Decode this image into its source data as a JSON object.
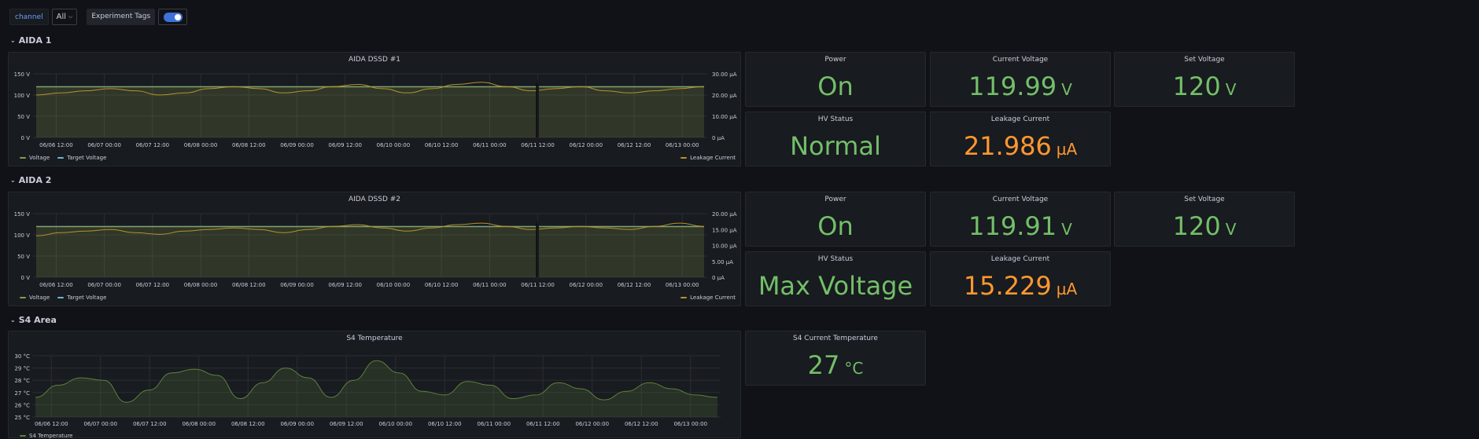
{
  "topbar": {
    "channel_label": "channel",
    "channel_value": "All",
    "tags_label": "Experiment Tags"
  },
  "rows": {
    "aida1": "AIDA 1",
    "aida2": "AIDA 2",
    "s4": "S4 Area"
  },
  "aida1": {
    "graph_title": "AIDA DSSD #1",
    "power": {
      "title": "Power",
      "value": "On"
    },
    "current_voltage": {
      "title": "Current Voltage",
      "value": "119.99",
      "unit": "V"
    },
    "set_voltage": {
      "title": "Set Voltage",
      "value": "120",
      "unit": "V"
    },
    "hv_status": {
      "title": "HV Status",
      "value": "Normal"
    },
    "leakage": {
      "title": "Leakage Current",
      "value": "21.986",
      "unit": "µA"
    }
  },
  "aida2": {
    "graph_title": "AIDA DSSD #2",
    "power": {
      "title": "Power",
      "value": "On"
    },
    "current_voltage": {
      "title": "Current Voltage",
      "value": "119.91",
      "unit": "V"
    },
    "set_voltage": {
      "title": "Set Voltage",
      "value": "120",
      "unit": "V"
    },
    "hv_status": {
      "title": "HV Status",
      "value": "Max Voltage"
    },
    "leakage": {
      "title": "Leakage Current",
      "value": "15.229",
      "unit": "µA"
    }
  },
  "s4": {
    "graph_title": "S4 Temperature",
    "current": {
      "title": "S4 Current Temperature",
      "value": "27",
      "unit": "°C"
    }
  },
  "legend": {
    "voltage": "Voltage",
    "target_voltage": "Target Voltage",
    "leakage_current": "Leakage Current",
    "s4_temperature": "S4 Temperature"
  },
  "colors": {
    "voltage": "#8a9a4a",
    "target": "#6fb8c7",
    "leakage": "#b8922a",
    "temperature": "#5f7f3f",
    "stat_green": "#73bf69",
    "stat_orange": "#ff9830"
  },
  "chart_data": [
    {
      "type": "line",
      "title": "AIDA DSSD #1",
      "x_ticks": [
        "06/06 12:00",
        "06/07 00:00",
        "06/07 12:00",
        "06/08 00:00",
        "06/08 12:00",
        "06/09 00:00",
        "06/09 12:00",
        "06/10 00:00",
        "06/10 12:00",
        "06/11 00:00",
        "06/11 12:00",
        "06/12 00:00",
        "06/12 12:00",
        "06/13 00:00"
      ],
      "y_left_ticks": [
        "0 V",
        "50 V",
        "100 V",
        "150 V"
      ],
      "y_left_range": [
        0,
        150
      ],
      "y_right_ticks": [
        "0 µA",
        "10.00 µA",
        "20.00 µA",
        "30.00 µA"
      ],
      "y_right_range": [
        0,
        30
      ],
      "series": [
        {
          "name": "Voltage",
          "axis": "left",
          "values": [
            120,
            120,
            120,
            120,
            120,
            120,
            120,
            120,
            120,
            120,
            120,
            120,
            120,
            120,
            120,
            120,
            120,
            120,
            120,
            120,
            120,
            120,
            120,
            120,
            120,
            120,
            120,
            120
          ]
        },
        {
          "name": "Target Voltage",
          "axis": "left",
          "values": [
            120,
            120,
            120,
            120,
            120,
            120,
            120,
            120,
            120,
            120,
            120,
            120,
            120,
            120,
            120,
            120,
            120,
            120,
            120,
            120,
            120,
            120,
            120,
            120,
            120,
            120,
            120,
            120
          ]
        },
        {
          "name": "Leakage Current",
          "axis": "right",
          "values": [
            20,
            21,
            22,
            23,
            22,
            20,
            21,
            23,
            24,
            23,
            21,
            22,
            24,
            25,
            23,
            21,
            23,
            25,
            26,
            24,
            22,
            23,
            24,
            22,
            21,
            22,
            23,
            24
          ]
        }
      ],
      "gap_at_tick": 10
    },
    {
      "type": "line",
      "title": "AIDA DSSD #2",
      "x_ticks": [
        "06/06 12:00",
        "06/07 00:00",
        "06/07 12:00",
        "06/08 00:00",
        "06/08 12:00",
        "06/09 00:00",
        "06/09 12:00",
        "06/10 00:00",
        "06/10 12:00",
        "06/11 00:00",
        "06/11 12:00",
        "06/12 00:00",
        "06/12 12:00",
        "06/13 00:00"
      ],
      "y_left_ticks": [
        "0 V",
        "50 V",
        "100 V",
        "150 V"
      ],
      "y_left_range": [
        0,
        150
      ],
      "y_right_ticks": [
        "0 µA",
        "5.00 µA",
        "10.00 µA",
        "15.00 µA",
        "20.00 µA"
      ],
      "y_right_range": [
        0,
        20
      ],
      "series": [
        {
          "name": "Voltage",
          "axis": "left",
          "values": [
            120,
            120,
            120,
            120,
            120,
            120,
            120,
            120,
            120,
            120,
            120,
            120,
            120,
            120,
            120,
            120,
            120,
            120,
            120,
            120,
            120,
            120,
            120,
            120,
            120,
            120,
            120,
            120
          ]
        },
        {
          "name": "Target Voltage",
          "axis": "left",
          "values": [
            120,
            120,
            120,
            120,
            120,
            120,
            120,
            120,
            120,
            120,
            120,
            120,
            120,
            120,
            120,
            120,
            120,
            120,
            120,
            120,
            120,
            120,
            120,
            120,
            120,
            120,
            120,
            120
          ]
        },
        {
          "name": "Leakage Current",
          "axis": "right",
          "values": [
            13,
            14,
            14.5,
            15,
            14,
            13.5,
            14.5,
            15,
            15.5,
            15,
            14,
            15,
            16,
            16.5,
            15.5,
            14.5,
            15.5,
            16.5,
            17,
            16,
            15,
            15.5,
            16,
            15.5,
            15,
            16,
            17,
            16
          ]
        }
      ],
      "gap_at_tick": 10
    },
    {
      "type": "line",
      "title": "S4 Temperature",
      "x_ticks": [
        "06/06 12:00",
        "06/07 00:00",
        "06/07 12:00",
        "06/08 00:00",
        "06/08 12:00",
        "06/09 00:00",
        "06/09 12:00",
        "06/10 00:00",
        "06/10 12:00",
        "06/11 00:00",
        "06/11 12:00",
        "06/12 00:00",
        "06/12 12:00",
        "06/13 00:00"
      ],
      "y_ticks": [
        "25 °C",
        "26 °C",
        "27 °C",
        "28 °C",
        "29 °C",
        "30 °C"
      ],
      "y_range": [
        25,
        30
      ],
      "series": [
        {
          "name": "S4 Temperature",
          "values": [
            26.6,
            27.6,
            28.2,
            28.0,
            26.2,
            27.2,
            28.6,
            28.9,
            28.4,
            26.5,
            27.8,
            29.0,
            28.2,
            26.6,
            28.0,
            29.6,
            28.6,
            27.1,
            26.8,
            27.9,
            27.6,
            26.5,
            26.8,
            27.8,
            27.3,
            26.4,
            27.1,
            27.8,
            27.3,
            26.8,
            26.6
          ]
        }
      ]
    }
  ]
}
